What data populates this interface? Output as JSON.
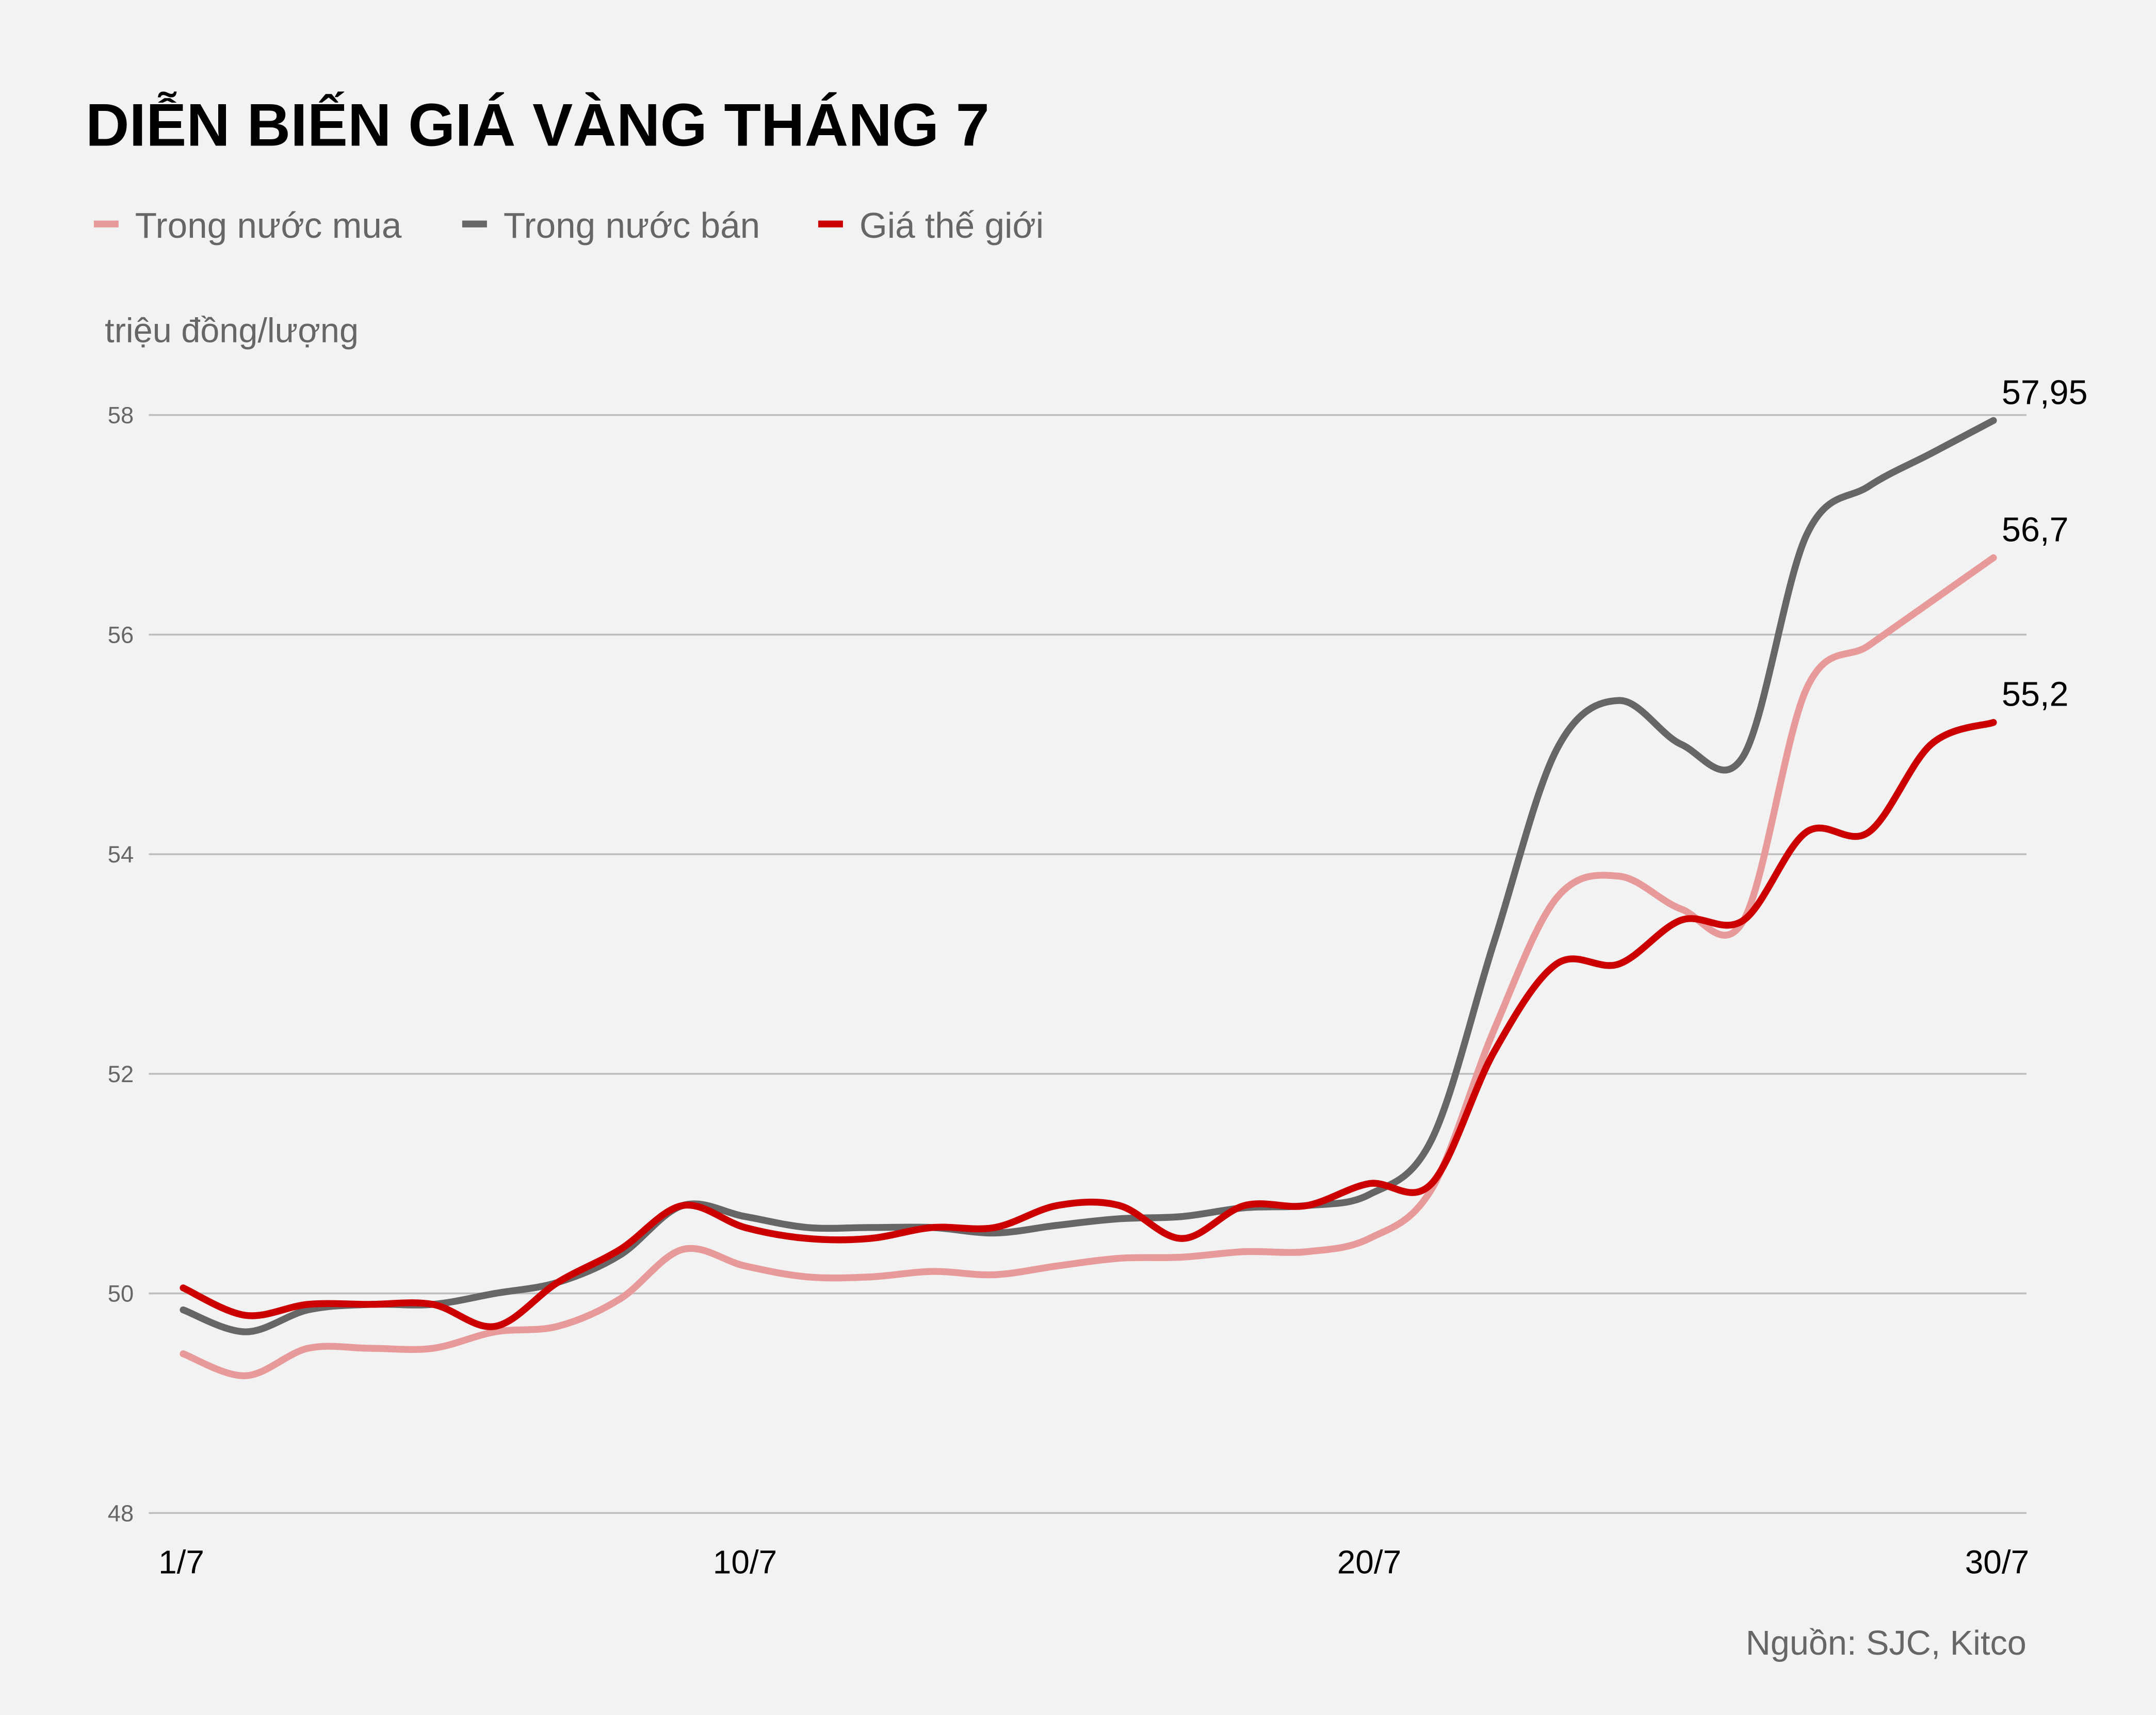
{
  "chart_data": {
    "type": "line",
    "title": "DIỄN BIẾN GIÁ VÀNG THÁNG 7",
    "ylabel": "triệu đồng/lượng",
    "xlabel": "",
    "source": "Nguồn: SJC, Kitco",
    "ylim": [
      48,
      58
    ],
    "yticks": [
      "48",
      "50",
      "52",
      "54",
      "56",
      "58"
    ],
    "ytick_values": [
      48,
      50,
      52,
      54,
      56,
      58
    ],
    "xticks": [
      {
        "day": 1,
        "label": "1/7"
      },
      {
        "day": 10,
        "label": "10/7"
      },
      {
        "day": 20,
        "label": "20/7"
      },
      {
        "day": 30,
        "label": "30/7"
      }
    ],
    "grid": "horizontal",
    "legend_position": "top-left",
    "x": [
      1,
      2,
      3,
      4,
      5,
      6,
      7,
      8,
      9,
      10,
      11,
      12,
      13,
      14,
      15,
      16,
      17,
      18,
      19,
      20,
      21,
      22,
      23,
      24,
      25,
      26,
      27,
      28,
      29,
      30
    ],
    "series": [
      {
        "name": "Trong nước mua",
        "color": "#e89a9a",
        "end_label": "56,7",
        "values": [
          49.45,
          49.25,
          49.5,
          49.5,
          49.5,
          49.65,
          49.7,
          49.95,
          50.4,
          50.25,
          50.15,
          50.15,
          50.2,
          50.17,
          50.25,
          50.32,
          50.33,
          50.38,
          50.38,
          50.5,
          50.95,
          52.4,
          53.6,
          53.8,
          53.5,
          53.4,
          55.5,
          55.9,
          56.3,
          56.7
        ]
      },
      {
        "name": "Trong nước bán",
        "color": "#666666",
        "end_label": "57,95",
        "values": [
          49.85,
          49.65,
          49.85,
          49.9,
          49.9,
          50.0,
          50.1,
          50.35,
          50.8,
          50.7,
          50.6,
          50.6,
          50.6,
          50.55,
          50.62,
          50.68,
          50.7,
          50.78,
          50.8,
          50.9,
          51.4,
          53.2,
          54.95,
          55.4,
          55.0,
          54.9,
          56.9,
          57.35,
          57.65,
          57.95
        ]
      },
      {
        "name": "Giá thế giới",
        "color": "#cc0000",
        "end_label": "55,2",
        "values": [
          50.05,
          49.8,
          49.9,
          49.9,
          49.9,
          49.7,
          50.1,
          50.4,
          50.8,
          50.6,
          50.5,
          50.5,
          50.6,
          50.6,
          50.8,
          50.8,
          50.5,
          50.8,
          50.8,
          51.0,
          51.0,
          52.2,
          53.0,
          53.0,
          53.4,
          53.4,
          54.2,
          54.2,
          55.0,
          55.2
        ]
      }
    ]
  }
}
